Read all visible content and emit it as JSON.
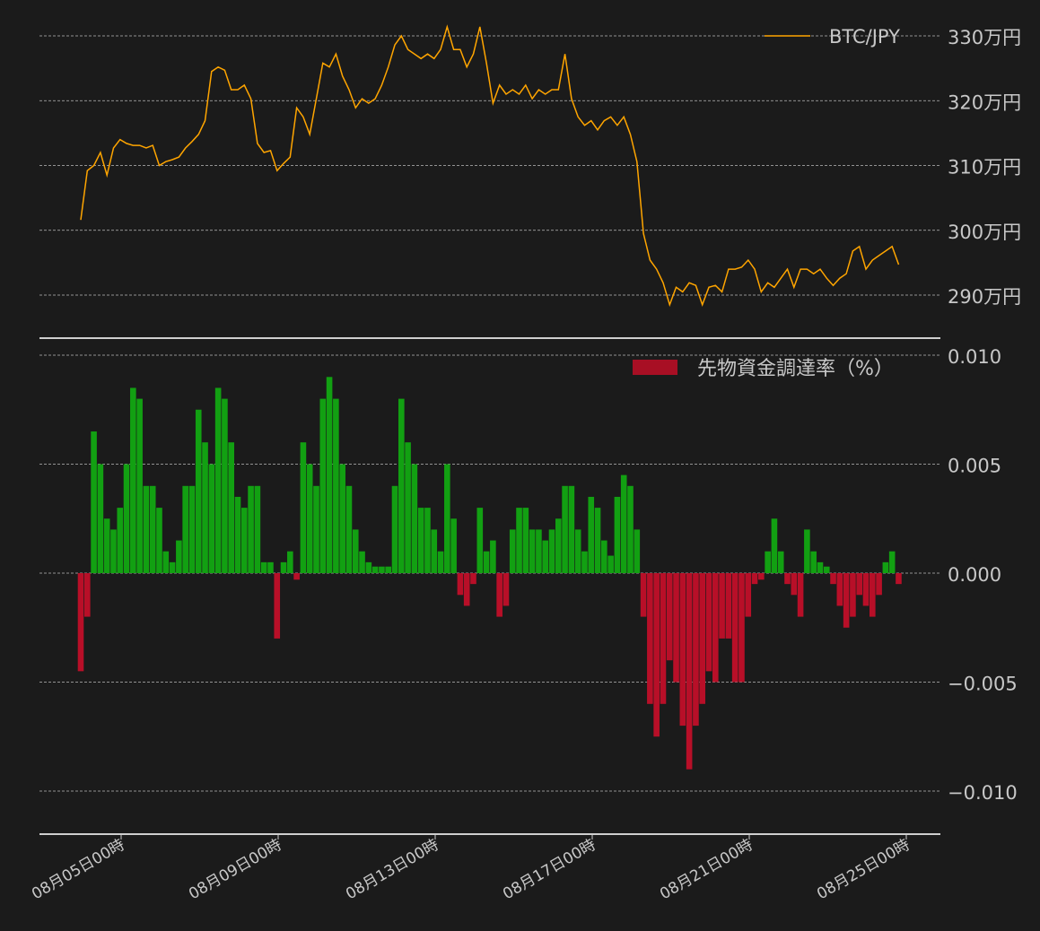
{
  "chart_data": [
    {
      "type": "line",
      "panel": "top",
      "series": [
        {
          "name": "BTC/JPY",
          "color": "#ffa500"
        }
      ],
      "x_start": "08月04日00時",
      "x_interval_hours": 4,
      "y_unit": "万円",
      "ylim": [
        287,
        332
      ],
      "yticks": [
        {
          "value": 290,
          "label": "290万円"
        },
        {
          "value": 300,
          "label": "300万円"
        },
        {
          "value": 310,
          "label": "310万円"
        },
        {
          "value": 320,
          "label": "320万円"
        },
        {
          "value": 330,
          "label": "330万円"
        }
      ],
      "grid": true,
      "legend": "top-right",
      "values": [
        301.6,
        309.2,
        310,
        312,
        308.5,
        312.7,
        314,
        313.4,
        313.1,
        313.1,
        312.7,
        313.1,
        310,
        310.6,
        310.9,
        311.3,
        312.7,
        313.7,
        314.8,
        316.9,
        324.5,
        325.2,
        324.7,
        321.7,
        321.7,
        322.4,
        320.3,
        313.4,
        312,
        312.3,
        309.2,
        310.3,
        311.3,
        318.9,
        317.5,
        314.8,
        320.3,
        325.8,
        325.2,
        327.2,
        323.8,
        321.7,
        318.9,
        320.3,
        319.6,
        320.3,
        322.4,
        325.2,
        328.6,
        330,
        327.9,
        327.2,
        326.5,
        327.2,
        326.5,
        327.9,
        331.4,
        327.9,
        327.9,
        325.2,
        327.2,
        331.4,
        325.8,
        319.6,
        322.4,
        321,
        321.7,
        321,
        322.4,
        320.3,
        321.7,
        321,
        321.7,
        321.7,
        327.2,
        320.3,
        317.5,
        316.2,
        316.9,
        315.5,
        316.9,
        317.5,
        316.2,
        317.5,
        314.8,
        310.6,
        299.5,
        295.4,
        294,
        291.9,
        288.5,
        291.2,
        290.5,
        291.9,
        291.5,
        288.5,
        291.2,
        291.5,
        290.5,
        294,
        294,
        294.3,
        295.4,
        294,
        290.5,
        291.9,
        291.2,
        292.6,
        294,
        291.2,
        294,
        294,
        293.3,
        294,
        292.6,
        291.5,
        292.6,
        293.3,
        296.8,
        297.5,
        294,
        295.4,
        296.1,
        296.8,
        297.5,
        294.7
      ]
    },
    {
      "type": "bar",
      "panel": "bottom",
      "series": [
        {
          "name": "先物資金調達率（%）",
          "color": "#a80f24"
        }
      ],
      "positive_color": "#12a012",
      "negative_color": "#b80f28",
      "x_start": "08月04日00時",
      "x_interval_hours": 4,
      "ylim": [
        -0.012,
        0.0102
      ],
      "yticks": [
        {
          "value": 0.01,
          "label": "0.010"
        },
        {
          "value": 0.005,
          "label": "0.005"
        },
        {
          "value": 0.0,
          "label": "0.000"
        },
        {
          "value": -0.005,
          "label": "−0.005"
        },
        {
          "value": -0.01,
          "label": "−0.010"
        }
      ],
      "grid": true,
      "legend": "top-right",
      "values": [
        -0.0045,
        -0.002,
        0.0065,
        0.005,
        0.0025,
        0.002,
        0.003,
        0.005,
        0.0085,
        0.008,
        0.004,
        0.004,
        0.003,
        0.001,
        0.0005,
        0.0015,
        0.004,
        0.004,
        0.0075,
        0.006,
        0.005,
        0.0085,
        0.008,
        0.006,
        0.0035,
        0.003,
        0.004,
        0.004,
        0.0005,
        0.0005,
        -0.003,
        0.0005,
        0.001,
        -0.0003,
        0.006,
        0.005,
        0.004,
        0.008,
        0.009,
        0.008,
        0.005,
        0.004,
        0.002,
        0.001,
        0.0005,
        0.0003,
        0.0003,
        0.0003,
        0.004,
        0.008,
        0.006,
        0.005,
        0.003,
        0.003,
        0.002,
        0.001,
        0.005,
        0.0025,
        -0.001,
        -0.0015,
        -0.0005,
        0.003,
        0.001,
        0.0015,
        -0.002,
        -0.0015,
        0.002,
        0.003,
        0.003,
        0.002,
        0.002,
        0.0015,
        0.002,
        0.0025,
        0.004,
        0.004,
        0.002,
        0.001,
        0.0035,
        0.003,
        0.0015,
        0.0008,
        0.0035,
        0.0045,
        0.004,
        0.002,
        -0.002,
        -0.006,
        -0.0075,
        -0.006,
        -0.004,
        -0.005,
        -0.007,
        -0.009,
        -0.007,
        -0.006,
        -0.0045,
        -0.005,
        -0.003,
        -0.003,
        -0.005,
        -0.005,
        -0.002,
        -0.0005,
        -0.0003,
        0.001,
        0.0025,
        0.001,
        -0.0005,
        -0.001,
        -0.002,
        0.002,
        0.001,
        0.0005,
        0.0003,
        -0.0005,
        -0.0015,
        -0.0025,
        -0.002,
        -0.001,
        -0.0015,
        -0.002,
        -0.001,
        0.0005,
        0.001,
        -0.0005
      ]
    }
  ],
  "xticks": [
    "08月05日00時",
    "08月09日00時",
    "08月13日00時",
    "08月17日00時",
    "08月21日00時",
    "08月25日00時"
  ],
  "legend": {
    "price_label": "BTC/JPY",
    "funding_label": "先物資金調達率（%）"
  }
}
